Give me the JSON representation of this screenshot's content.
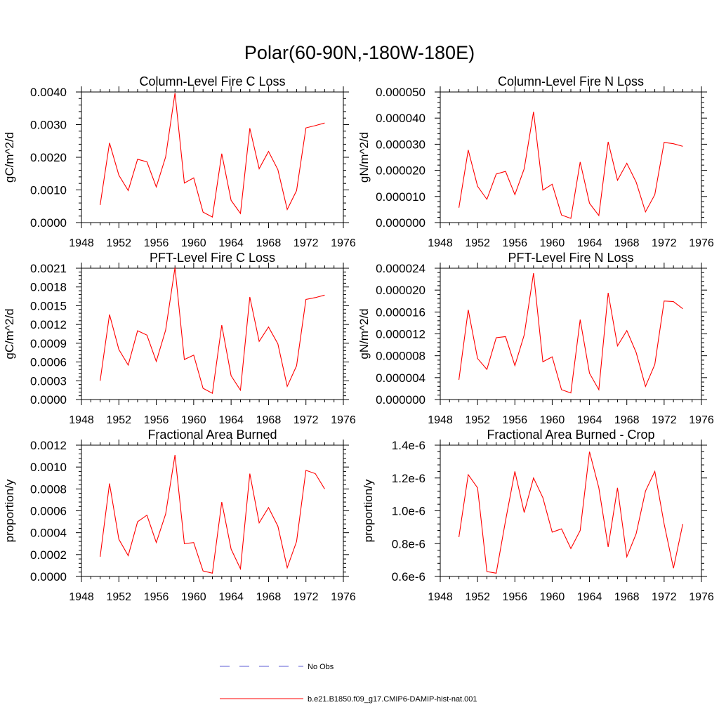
{
  "figure_title": "Polar(60-90N,-180W-180E)",
  "chart_data": [
    {
      "type": "line",
      "title": "Column-Level Fire C Loss",
      "ylabel": "gC/m^2/d",
      "xlim": [
        1948,
        1976
      ],
      "xticks": [
        1948,
        1952,
        1956,
        1960,
        1964,
        1968,
        1972,
        1976
      ],
      "ylim": [
        0,
        0.004
      ],
      "yticks": [
        0,
        0.001,
        0.002,
        0.003,
        0.004
      ],
      "ytick_labels": [
        "0.0000",
        "0.0010",
        "0.0020",
        "0.0030",
        "0.0040"
      ],
      "x": [
        1950,
        1951,
        1952,
        1953,
        1954,
        1955,
        1956,
        1957,
        1958,
        1959,
        1960,
        1961,
        1962,
        1963,
        1964,
        1965,
        1966,
        1967,
        1968,
        1969,
        1970,
        1971,
        1972,
        1973,
        1974
      ],
      "series": [
        {
          "name": "b.e21.B1850.f09_g17.CMIP6-DAMIP-hist-nat.001",
          "color": "#ff0000",
          "values": [
            0.00054,
            0.00244,
            0.00145,
            0.00098,
            0.00194,
            0.00186,
            0.00109,
            0.00201,
            0.00397,
            0.00121,
            0.00137,
            0.00032,
            0.00017,
            0.00211,
            0.00068,
            0.00028,
            0.00289,
            0.00165,
            0.00218,
            0.00162,
            0.0004,
            0.00098,
            0.0029,
            0.00297,
            0.00305
          ]
        }
      ]
    },
    {
      "type": "line",
      "title": "Column-Level Fire N Loss",
      "ylabel": "gN/m^2/d",
      "xlim": [
        1948,
        1976
      ],
      "xticks": [
        1948,
        1952,
        1956,
        1960,
        1964,
        1968,
        1972,
        1976
      ],
      "ylim": [
        0,
        5e-05
      ],
      "yticks": [
        0,
        1e-05,
        2e-05,
        3e-05,
        4e-05,
        5e-05
      ],
      "ytick_labels": [
        "0.000000",
        "0.000010",
        "0.000020",
        "0.000030",
        "0.000040",
        "0.000050"
      ],
      "x": [
        1950,
        1951,
        1952,
        1953,
        1954,
        1955,
        1956,
        1957,
        1958,
        1959,
        1960,
        1961,
        1962,
        1963,
        1964,
        1965,
        1966,
        1967,
        1968,
        1969,
        1970,
        1971,
        1972,
        1973,
        1974
      ],
      "series": [
        {
          "name": "b.e21.B1850.f09_g17.CMIP6-DAMIP-hist-nat.001",
          "color": "#ff0000",
          "values": [
            5.7e-06,
            2.78e-05,
            1.39e-05,
            8.9e-06,
            1.86e-05,
            1.96e-05,
            1.07e-05,
            2.06e-05,
            4.24e-05,
            1.24e-05,
            1.47e-05,
            2.9e-06,
            1.6e-06,
            2.32e-05,
            7.4e-06,
            2.7e-06,
            3.09e-05,
            1.62e-05,
            2.27e-05,
            1.55e-05,
            4.1e-06,
            1.07e-05,
            3.07e-05,
            3.02e-05,
            2.92e-05
          ]
        }
      ]
    },
    {
      "type": "line",
      "title": "PFT-Level Fire C Loss",
      "ylabel": "gC/m^2/d",
      "xlim": [
        1948,
        1976
      ],
      "xticks": [
        1948,
        1952,
        1956,
        1960,
        1964,
        1968,
        1972,
        1976
      ],
      "ylim": [
        0,
        0.0021
      ],
      "yticks": [
        0,
        0.0003,
        0.0006,
        0.0009,
        0.0012,
        0.0015,
        0.0018,
        0.0021
      ],
      "ytick_labels": [
        "0.0000",
        "0.0003",
        "0.0006",
        "0.0009",
        "0.0012",
        "0.0015",
        "0.0018",
        "0.0021"
      ],
      "x": [
        1950,
        1951,
        1952,
        1953,
        1954,
        1955,
        1956,
        1957,
        1958,
        1959,
        1960,
        1961,
        1962,
        1963,
        1964,
        1965,
        1966,
        1967,
        1968,
        1969,
        1970,
        1971,
        1972,
        1973,
        1974
      ],
      "series": [
        {
          "name": "b.e21.B1850.f09_g17.CMIP6-DAMIP-hist-nat.001",
          "color": "#ff0000",
          "values": [
            0.0003,
            0.00136,
            0.0008,
            0.00055,
            0.0011,
            0.00103,
            0.00061,
            0.00111,
            0.00211,
            0.00064,
            0.00071,
            0.00018,
            0.0001,
            0.00119,
            0.00038,
            0.00015,
            0.00164,
            0.00093,
            0.00116,
            0.00089,
            0.00021,
            0.00054,
            0.0016,
            0.00163,
            0.00167
          ]
        }
      ]
    },
    {
      "type": "line",
      "title": "PFT-Level Fire N Loss",
      "ylabel": "gN/m^2/d",
      "xlim": [
        1948,
        1976
      ],
      "xticks": [
        1948,
        1952,
        1956,
        1960,
        1964,
        1968,
        1972,
        1976
      ],
      "ylim": [
        0,
        2.4e-05
      ],
      "yticks": [
        0,
        4e-06,
        8e-06,
        1.2e-05,
        1.6e-05,
        2e-05,
        2.4e-05
      ],
      "ytick_labels": [
        "0.000000",
        "0.000004",
        "0.000008",
        "0.000012",
        "0.000016",
        "0.000020",
        "0.000024"
      ],
      "x": [
        1950,
        1951,
        1952,
        1953,
        1954,
        1955,
        1956,
        1957,
        1958,
        1959,
        1960,
        1961,
        1962,
        1963,
        1964,
        1965,
        1966,
        1967,
        1968,
        1969,
        1970,
        1971,
        1972,
        1973,
        1974
      ],
      "series": [
        {
          "name": "b.e21.B1850.f09_g17.CMIP6-DAMIP-hist-nat.001",
          "color": "#ff0000",
          "values": [
            3.6e-06,
            1.64e-05,
            7.5e-06,
            5.5e-06,
            1.13e-05,
            1.15e-05,
            6.2e-06,
            1.18e-05,
            2.31e-05,
            6.9e-06,
            7.8e-06,
            1.8e-06,
            1.2e-06,
            1.46e-05,
            4.8e-06,
            1.8e-06,
            1.95e-05,
            9.8e-06,
            1.26e-05,
            8.6e-06,
            2.4e-06,
            6.4e-06,
            1.8e-05,
            1.79e-05,
            1.66e-05
          ]
        }
      ]
    },
    {
      "type": "line",
      "title": "Fractional Area Burned",
      "ylabel": "proportion/y",
      "xlim": [
        1948,
        1976
      ],
      "xticks": [
        1948,
        1952,
        1956,
        1960,
        1964,
        1968,
        1972,
        1976
      ],
      "ylim": [
        0,
        0.0012
      ],
      "yticks": [
        0,
        0.0002,
        0.0004,
        0.0006,
        0.0008,
        0.001,
        0.0012
      ],
      "ytick_labels": [
        "0.0000",
        "0.0002",
        "0.0004",
        "0.0006",
        "0.0008",
        "0.0010",
        "0.0012"
      ],
      "x": [
        1950,
        1951,
        1952,
        1953,
        1954,
        1955,
        1956,
        1957,
        1958,
        1959,
        1960,
        1961,
        1962,
        1963,
        1964,
        1965,
        1966,
        1967,
        1968,
        1969,
        1970,
        1971,
        1972,
        1973,
        1974
      ],
      "series": [
        {
          "name": "b.e21.B1850.f09_g17.CMIP6-DAMIP-hist-nat.001",
          "color": "#ff0000",
          "values": [
            0.00018,
            0.00085,
            0.00034,
            0.00019,
            0.0005,
            0.00056,
            0.00031,
            0.00057,
            0.00111,
            0.0003,
            0.00031,
            5e-05,
            3e-05,
            0.00068,
            0.00025,
            7e-05,
            0.00094,
            0.00049,
            0.00063,
            0.00046,
            8e-05,
            0.00032,
            0.00097,
            0.00094,
            0.0008
          ]
        }
      ]
    },
    {
      "type": "line",
      "title": "Fractional Area Burned - Crop",
      "ylabel": "proportion/y",
      "xlim": [
        1948,
        1976
      ],
      "xticks": [
        1948,
        1952,
        1956,
        1960,
        1964,
        1968,
        1972,
        1976
      ],
      "ylim": [
        6e-07,
        1.4e-06
      ],
      "yticks": [
        6e-07,
        8e-07,
        1e-06,
        1.2e-06,
        1.4e-06
      ],
      "ytick_labels": [
        "0.6e-6",
        "0.8e-6",
        "1.0e-6",
        "1.2e-6",
        "1.4e-6"
      ],
      "x": [
        1950,
        1951,
        1952,
        1953,
        1954,
        1955,
        1956,
        1957,
        1958,
        1959,
        1960,
        1961,
        1962,
        1963,
        1964,
        1965,
        1966,
        1967,
        1968,
        1969,
        1970,
        1971,
        1972,
        1973,
        1974
      ],
      "series": [
        {
          "name": "b.e21.B1850.f09_g17.CMIP6-DAMIP-hist-nat.001",
          "color": "#ff0000",
          "values": [
            8.4e-07,
            1.22e-06,
            1.14e-06,
            6.3e-07,
            6.2e-07,
            9.4e-07,
            1.24e-06,
            9.9e-07,
            1.2e-06,
            1.08e-06,
            8.7e-07,
            8.9e-07,
            7.7e-07,
            8.8e-07,
            1.36e-06,
            1.14e-06,
            7.8e-07,
            1.14e-06,
            7.2e-07,
            8.6e-07,
            1.12e-06,
            1.24e-06,
            9.2e-07,
            6.5e-07,
            9.2e-07
          ]
        }
      ]
    }
  ],
  "legend": {
    "position": "bottom-center",
    "items": [
      {
        "label": "No Obs",
        "color": "#5b5bd6",
        "style": "dashed"
      },
      {
        "label": "b.e21.B1850.f09_g17.CMIP6-DAMIP-hist-nat.001",
        "color": "#ff0000",
        "style": "solid"
      }
    ]
  }
}
